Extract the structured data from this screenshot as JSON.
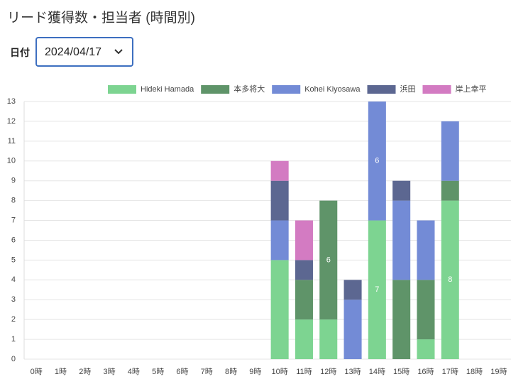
{
  "page_title": "リード獲得数・担当者 (時間別)",
  "filter": {
    "label": "日付",
    "value": "2024/04/17"
  },
  "chart_data": {
    "type": "stacked-bar",
    "categories": [
      "0時",
      "1時",
      "2時",
      "3時",
      "4時",
      "5時",
      "6時",
      "7時",
      "8時",
      "9時",
      "10時",
      "11時",
      "12時",
      "13時",
      "14時",
      "15時",
      "16時",
      "17時",
      "18時",
      "19時"
    ],
    "series": [
      {
        "name": "Hideki Hamada",
        "color": "#7dd491",
        "values": [
          0,
          0,
          0,
          0,
          0,
          0,
          0,
          0,
          0,
          0,
          5,
          2,
          2,
          0,
          7,
          0,
          1,
          8,
          0,
          0
        ]
      },
      {
        "name": "本多将大",
        "color": "#5f9469",
        "values": [
          0,
          0,
          0,
          0,
          0,
          0,
          0,
          0,
          0,
          0,
          0,
          2,
          6,
          0,
          0,
          4,
          3,
          1,
          0,
          0
        ]
      },
      {
        "name": "Kohei Kiyosawa",
        "color": "#738bd6",
        "values": [
          0,
          0,
          0,
          0,
          0,
          0,
          0,
          0,
          0,
          0,
          2,
          0,
          0,
          3,
          6,
          4,
          3,
          3,
          0,
          0
        ]
      },
      {
        "name": "浜田",
        "color": "#5c6791",
        "values": [
          0,
          0,
          0,
          0,
          0,
          0,
          0,
          0,
          0,
          0,
          2,
          1,
          0,
          1,
          0,
          1,
          0,
          0,
          0,
          0
        ]
      },
      {
        "name": "岸上幸平",
        "color": "#d37bc2",
        "values": [
          0,
          0,
          0,
          0,
          0,
          0,
          0,
          0,
          0,
          0,
          1,
          2,
          0,
          0,
          0,
          0,
          0,
          0,
          0,
          0
        ]
      }
    ],
    "ylim": [
      0,
      13
    ],
    "yticks": [
      0,
      1,
      2,
      3,
      4,
      5,
      6,
      7,
      8,
      9,
      10,
      11,
      12,
      13
    ],
    "grid": true,
    "legend": "top"
  }
}
